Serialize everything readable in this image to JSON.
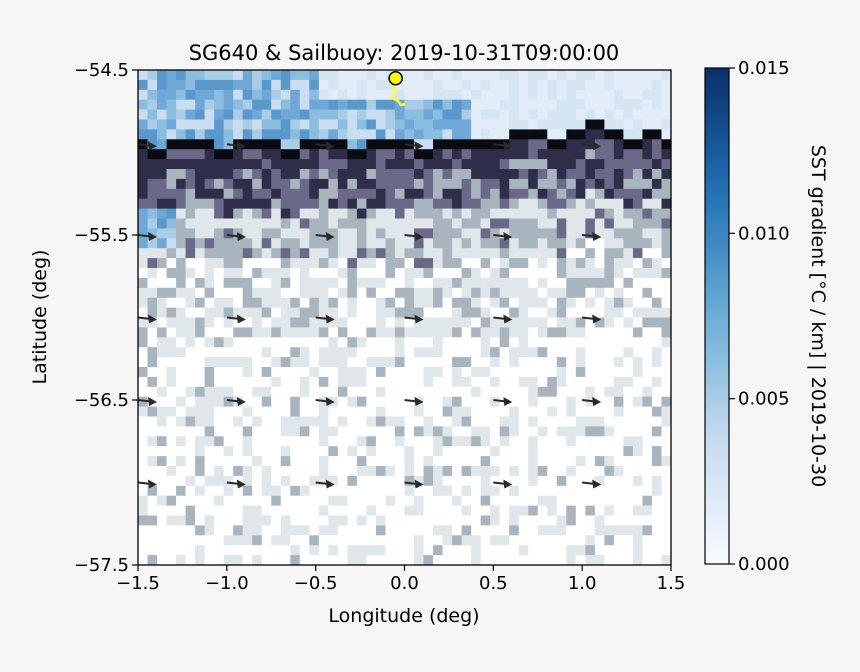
{
  "chart_data": {
    "type": "heatmap",
    "title": "SG640 & Sailbuoy: 2019-10-31T09:00:00",
    "xlabel": "Longitude (deg)",
    "ylabel": "Latitude (deg)",
    "xlim": [
      -1.5,
      1.5
    ],
    "ylim": [
      -57.5,
      -54.5
    ],
    "x_ticks": [
      -1.5,
      -1.0,
      -0.5,
      0.0,
      0.5,
      1.0,
      1.5
    ],
    "x_tick_labels": [
      "−1.5",
      "−1.0",
      "−0.5",
      "0.0",
      "0.5",
      "1.0",
      "1.5"
    ],
    "y_ticks": [
      -54.5,
      -55.5,
      -56.5,
      -57.5
    ],
    "y_tick_labels": [
      "−54.5",
      "−55.5",
      "−56.5",
      "−57.5"
    ],
    "colorbar": {
      "label": "SST gradient [°C / km] | 2019-10-30",
      "range": [
        0.0,
        0.015
      ],
      "ticks": [
        0.0,
        0.005,
        0.01,
        0.015
      ],
      "tick_labels": [
        "0.000",
        "0.005",
        "0.010",
        "0.015"
      ],
      "colormap": [
        "#f7fbff",
        "#c6dbef",
        "#6baed6",
        "#2171b5",
        "#08306b"
      ]
    },
    "land_mask_colors": [
      "#0a0a12",
      "#2e2e48",
      "#6a6a88",
      "#a9b5be",
      "#dfe7ea",
      "#ffffff"
    ],
    "current_arrows": {
      "lon": [
        -1.5,
        -1.0,
        -0.5,
        0.0,
        0.5,
        1.0
      ],
      "lat": [
        -54.95,
        -55.5,
        -56.0,
        -56.5,
        -57.0
      ],
      "direction": "east",
      "color": "#2a2a2a"
    },
    "glider_position": {
      "lon": -0.05,
      "lat": -54.55,
      "color": "#ffff00"
    },
    "track_color": "#ffff33",
    "grid": false
  }
}
